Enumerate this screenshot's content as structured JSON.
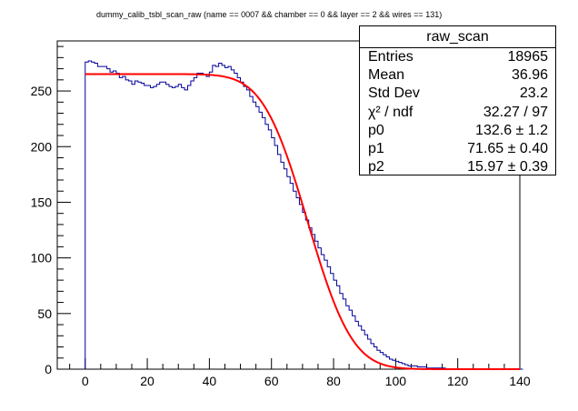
{
  "chart_data": {
    "type": "histogram",
    "title": "dummy_calib_tsbl_scan_raw  (name == 0007 && chamber == 0 && layer == 2 && wires == 131)",
    "xlabel": "",
    "ylabel": "",
    "xlim": [
      -9,
      140
    ],
    "ylim": [
      0,
      295
    ],
    "x_ticks": [
      0,
      20,
      40,
      60,
      80,
      100,
      120,
      140
    ],
    "y_ticks": [
      0,
      50,
      100,
      150,
      200,
      250
    ],
    "bin_width": 1,
    "bin_start": 0,
    "values": [
      276,
      277,
      276,
      275,
      272,
      272,
      272,
      270,
      267,
      268,
      266,
      262,
      263,
      260,
      259,
      256,
      259,
      258,
      257,
      255,
      255,
      253,
      254,
      256,
      258,
      258,
      256,
      254,
      253,
      254,
      256,
      253,
      251,
      255,
      259,
      262,
      266,
      266,
      265,
      263,
      267,
      273,
      272,
      275,
      273,
      271,
      272,
      269,
      266,
      262,
      258,
      254,
      251,
      245,
      240,
      236,
      231,
      226,
      220,
      215,
      208,
      201,
      193,
      186,
      180,
      173,
      167,
      160,
      154,
      148,
      141,
      134,
      127,
      121,
      115,
      109,
      103,
      98,
      92,
      86,
      80,
      75,
      68,
      63,
      57,
      53,
      48,
      43,
      39,
      35,
      31,
      27,
      23,
      20,
      17,
      15,
      13,
      11,
      9,
      8,
      7,
      6,
      5,
      4,
      3,
      3,
      3,
      2,
      2,
      2,
      1,
      1,
      1,
      1,
      1,
      1,
      0,
      0,
      0,
      0,
      0,
      0,
      0,
      0,
      0,
      0,
      0,
      0,
      0,
      0,
      0,
      0,
      0,
      0,
      0,
      0,
      0,
      0,
      0,
      0,
      0
    ],
    "fit": {
      "name": "erfc",
      "color": "#ff0000",
      "x_range": [
        0,
        140
      ],
      "p0": 132.6,
      "p1": 71.65,
      "p2": 15.97
    },
    "histogram_color": "#000099"
  },
  "stats_box": {
    "title": "raw_scan",
    "rows": [
      {
        "label": "Entries",
        "value": "18965"
      },
      {
        "label": "Mean",
        "value": "36.96"
      },
      {
        "label": "Std Dev",
        "value": "23.2"
      },
      {
        "label": "χ² / ndf",
        "value": "32.27 / 97"
      },
      {
        "label": "p0",
        "value": "132.6 ± 1.2"
      },
      {
        "label": "p1",
        "value": "71.65 ± 0.40"
      },
      {
        "label": "p2",
        "value": "15.97 ± 0.39"
      }
    ]
  }
}
